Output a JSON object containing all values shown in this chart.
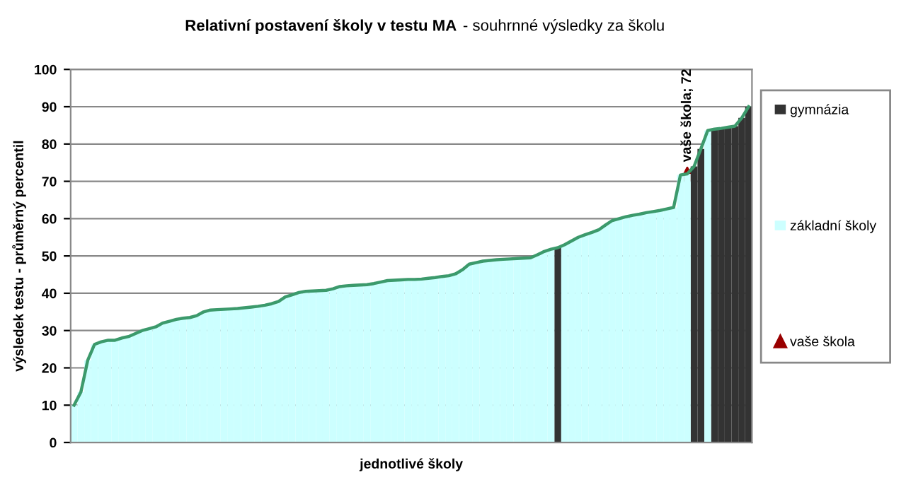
{
  "chart_data": {
    "type": "bar",
    "title": "Relativní postavení školy v testu MA",
    "subtitle": "- souhrnné výsledky za školu",
    "xlabel": "jednotlivé školy",
    "ylabel": "výsledek testu - průměrný percentil",
    "categories": [
      null,
      null,
      null,
      null,
      null,
      null,
      null,
      null,
      null,
      null,
      null,
      null,
      null,
      null,
      null,
      null,
      null,
      null,
      null,
      null,
      null,
      null,
      null,
      null,
      null,
      null,
      null,
      null,
      null,
      null,
      null,
      null,
      null,
      null,
      null,
      null,
      null,
      null,
      null,
      null,
      null,
      null,
      null,
      null,
      null,
      null,
      null,
      null,
      null,
      null,
      null,
      null,
      null,
      null,
      null,
      null,
      null,
      null,
      null,
      null,
      null,
      null,
      null,
      null,
      null,
      null,
      null,
      null,
      null,
      null,
      null,
      null,
      null,
      null,
      null,
      null,
      null,
      null,
      null,
      null,
      null,
      null,
      null,
      null,
      null,
      null,
      null,
      null,
      null,
      null,
      null,
      null,
      null,
      null,
      null,
      null,
      null,
      null,
      null,
      null
    ],
    "series": [
      {
        "name": "gymnázia",
        "color": "#333333",
        "values": [
          null,
          null,
          null,
          null,
          null,
          null,
          null,
          null,
          null,
          null,
          null,
          null,
          null,
          null,
          null,
          null,
          null,
          null,
          null,
          null,
          null,
          null,
          null,
          null,
          null,
          null,
          null,
          null,
          null,
          null,
          null,
          null,
          null,
          null,
          null,
          null,
          null,
          null,
          null,
          null,
          null,
          null,
          null,
          null,
          null,
          null,
          null,
          null,
          null,
          null,
          null,
          null,
          null,
          null,
          null,
          null,
          null,
          null,
          null,
          null,
          null,
          null,
          null,
          null,
          null,
          null,
          null,
          null,
          null,
          null,
          null,
          52.2,
          null,
          null,
          null,
          null,
          null,
          null,
          null,
          null,
          null,
          null,
          null,
          null,
          null,
          null,
          null,
          null,
          null,
          null,
          null,
          74,
          78.7,
          null,
          84,
          84.2,
          84.5,
          84.8,
          87,
          90
        ]
      },
      {
        "name": "základní školy",
        "color": "#ccffff",
        "values": [
          10,
          13.5,
          22,
          26.3,
          27,
          27.4,
          27.4,
          28,
          28.4,
          29.2,
          30,
          30.5,
          31,
          32,
          32.5,
          33,
          33.3,
          33.5,
          34,
          35,
          35.5,
          35.6,
          35.7,
          35.8,
          35.9,
          36.1,
          36.3,
          36.5,
          36.8,
          37.2,
          37.8,
          39,
          39.6,
          40.2,
          40.5,
          40.6,
          40.7,
          40.8,
          41.2,
          41.8,
          42,
          42.1,
          42.2,
          42.3,
          42.6,
          43,
          43.4,
          43.5,
          43.6,
          43.7,
          43.7,
          43.8,
          44,
          44.2,
          44.5,
          44.7,
          45.2,
          46.3,
          47.8,
          48.2,
          48.6,
          48.8,
          49,
          49.1,
          49.2,
          49.3,
          49.4,
          49.5,
          50.3,
          51.2,
          51.8,
          null,
          53,
          54,
          55,
          55.7,
          56.3,
          57,
          58.3,
          59.5,
          60,
          60.5,
          60.9,
          61.2,
          61.6,
          61.9,
          62.2,
          62.6,
          63,
          71.7,
          72,
          null,
          null,
          83.6,
          null,
          null,
          null,
          null,
          null,
          null
        ]
      },
      {
        "type": "line",
        "color": "#3c9a6c",
        "marker": "none",
        "values": [
          10,
          13.5,
          22,
          26.3,
          27,
          27.4,
          27.4,
          28,
          28.4,
          29.2,
          30,
          30.5,
          31,
          32,
          32.5,
          33,
          33.3,
          33.5,
          34,
          35,
          35.5,
          35.6,
          35.7,
          35.8,
          35.9,
          36.1,
          36.3,
          36.5,
          36.8,
          37.2,
          37.8,
          39,
          39.6,
          40.2,
          40.5,
          40.6,
          40.7,
          40.8,
          41.2,
          41.8,
          42,
          42.1,
          42.2,
          42.3,
          42.6,
          43,
          43.4,
          43.5,
          43.6,
          43.7,
          43.7,
          43.8,
          44,
          44.2,
          44.5,
          44.7,
          45.2,
          46.3,
          47.8,
          48.2,
          48.6,
          48.8,
          49,
          49.1,
          49.2,
          49.3,
          49.4,
          49.5,
          50.3,
          51.2,
          51.8,
          52.2,
          53,
          54,
          55,
          55.7,
          56.3,
          57,
          58.3,
          59.5,
          60,
          60.5,
          60.9,
          61.2,
          61.6,
          61.9,
          62.2,
          62.6,
          63,
          71.7,
          72,
          74,
          78.7,
          83.6,
          84,
          84.2,
          84.5,
          84.8,
          87,
          90
        ]
      },
      {
        "name": "vaše škola",
        "type": "scatter",
        "color": "#990000",
        "marker": "triangle",
        "values": [
          null,
          null,
          null,
          null,
          null,
          null,
          null,
          null,
          null,
          null,
          null,
          null,
          null,
          null,
          null,
          null,
          null,
          null,
          null,
          null,
          null,
          null,
          null,
          null,
          null,
          null,
          null,
          null,
          null,
          null,
          null,
          null,
          null,
          null,
          null,
          null,
          null,
          null,
          null,
          null,
          null,
          null,
          null,
          null,
          null,
          null,
          null,
          null,
          null,
          null,
          null,
          null,
          null,
          null,
          null,
          null,
          null,
          null,
          null,
          null,
          null,
          null,
          null,
          null,
          null,
          null,
          null,
          null,
          null,
          null,
          null,
          null,
          null,
          null,
          null,
          null,
          null,
          null,
          null,
          null,
          null,
          null,
          null,
          null,
          null,
          null,
          null,
          null,
          null,
          null,
          72,
          null,
          null,
          null,
          null,
          null,
          null,
          null,
          null,
          null
        ],
        "value_labels": [
          null,
          null,
          null,
          null,
          null,
          null,
          null,
          null,
          null,
          null,
          null,
          null,
          null,
          null,
          null,
          null,
          null,
          null,
          null,
          null,
          null,
          null,
          null,
          null,
          null,
          null,
          null,
          null,
          null,
          null,
          null,
          null,
          null,
          null,
          null,
          null,
          null,
          null,
          null,
          null,
          null,
          null,
          null,
          null,
          null,
          null,
          null,
          null,
          null,
          null,
          null,
          null,
          null,
          null,
          null,
          null,
          null,
          null,
          null,
          null,
          null,
          null,
          null,
          null,
          null,
          null,
          null,
          null,
          null,
          null,
          null,
          null,
          null,
          null,
          null,
          null,
          null,
          null,
          null,
          null,
          null,
          null,
          null,
          null,
          null,
          null,
          null,
          null,
          null,
          null,
          "vaše škola; 72",
          null,
          null,
          null,
          null,
          null,
          null,
          null,
          null,
          null
        ]
      }
    ],
    "ylim": [
      0,
      100
    ],
    "yticks": [
      0,
      10,
      20,
      30,
      40,
      50,
      60,
      70,
      80,
      90,
      100
    ],
    "grid": "y",
    "legend": "right"
  }
}
